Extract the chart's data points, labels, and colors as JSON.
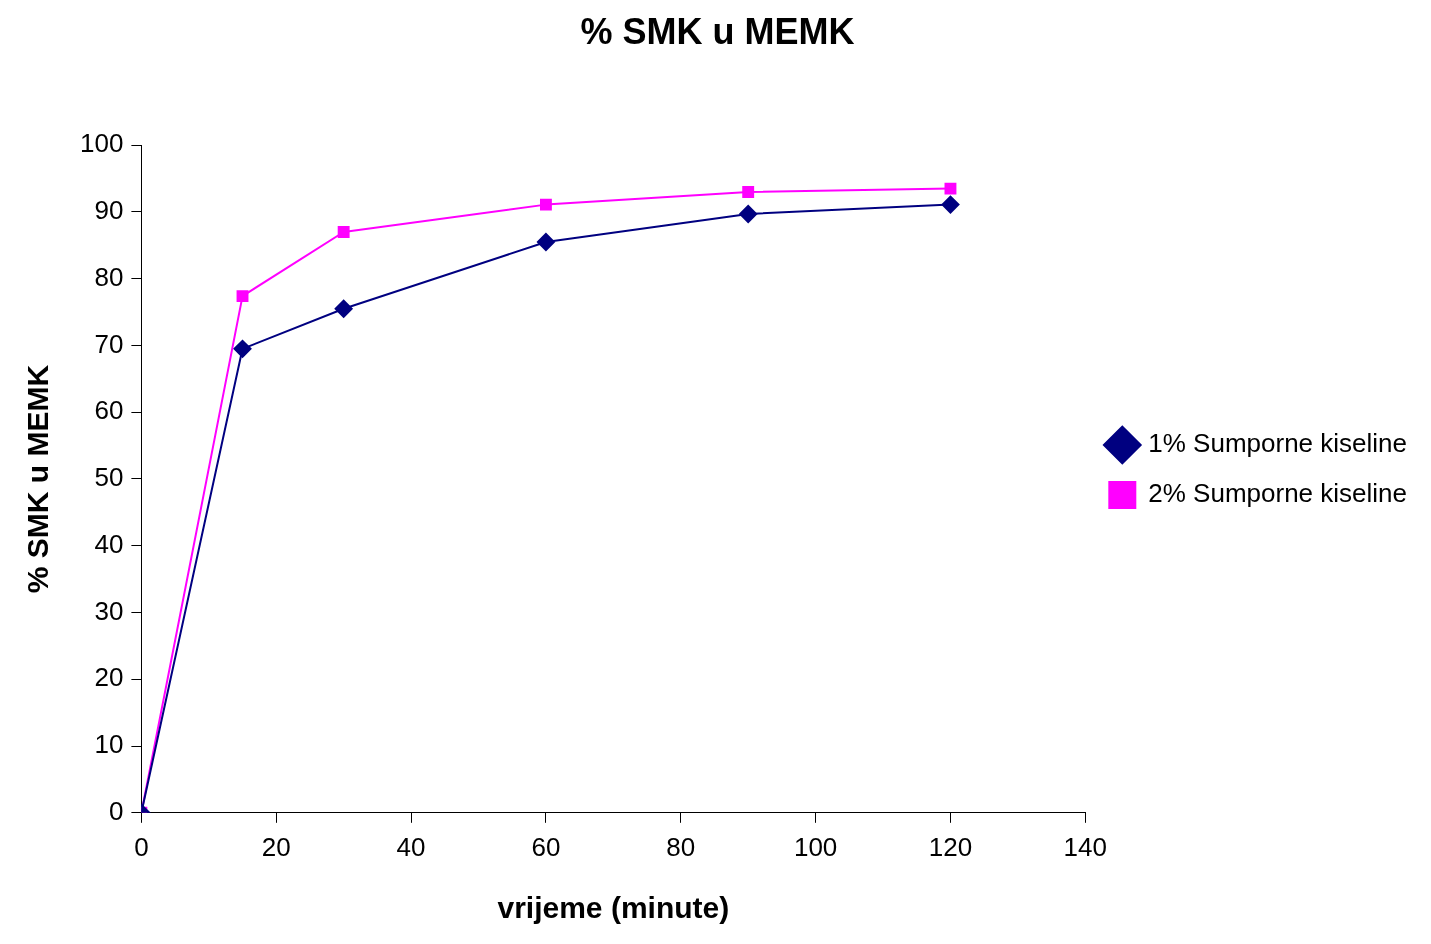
{
  "chart_data": {
    "type": "line",
    "title": "% SMK u MEMK",
    "xlabel": "vrijeme (minute)",
    "ylabel": "% SMK u MEMK",
    "x": [
      0,
      15,
      30,
      60,
      90,
      120
    ],
    "series": [
      {
        "name": "1% Sumporne kiseline",
        "color": "#000080",
        "marker": "diamond",
        "values": [
          0,
          69.5,
          75.5,
          85.5,
          89.7,
          91.1
        ]
      },
      {
        "name": "2% Sumporne kiseline",
        "color": "#ff00ff",
        "marker": "square",
        "values": [
          0,
          77.4,
          87.0,
          91.1,
          93.0,
          93.5
        ]
      }
    ],
    "xlim": [
      0,
      140
    ],
    "xticks": [
      0,
      20,
      40,
      60,
      80,
      100,
      120,
      140
    ],
    "ylim": [
      0,
      100
    ],
    "yticks": [
      0,
      10,
      20,
      30,
      40,
      50,
      60,
      70,
      80,
      90,
      100
    ],
    "grid": false,
    "legend": "right",
    "line_style": "solid"
  }
}
